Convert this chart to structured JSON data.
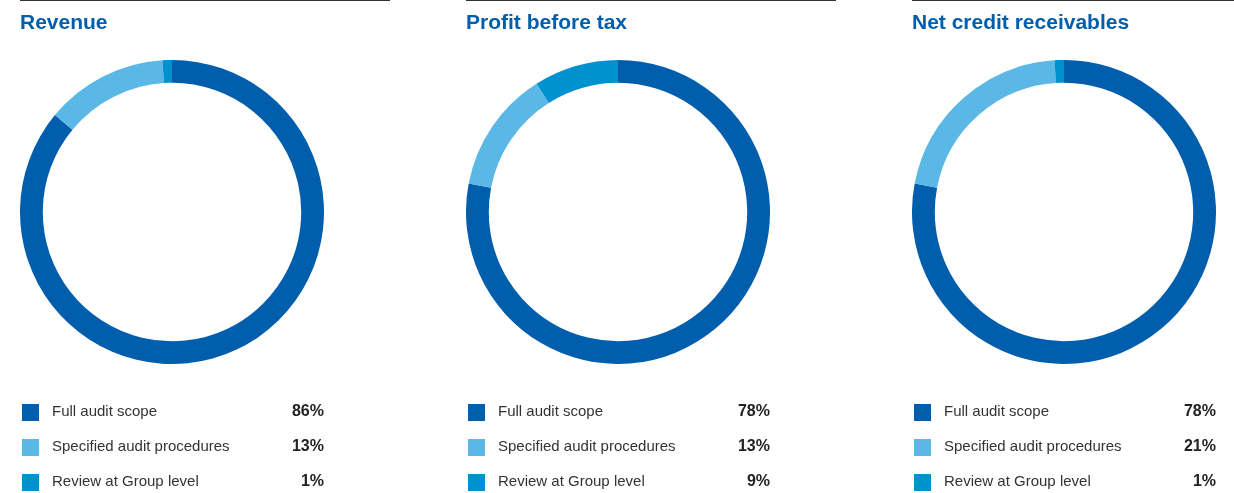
{
  "chart_data": [
    {
      "type": "donut",
      "title": "Revenue",
      "categories": [
        "Full audit scope",
        "Specified audit procedures",
        "Review at Group level"
      ],
      "values": [
        86,
        13,
        1
      ],
      "value_labels": [
        "86%",
        "13%",
        "1%"
      ],
      "colors": [
        "#005eac",
        "#5ab7e6",
        "#0092d0"
      ],
      "legend": "bottom"
    },
    {
      "type": "donut",
      "title": "Profit before tax",
      "categories": [
        "Full audit scope",
        "Specified audit procedures",
        "Review at Group level"
      ],
      "values": [
        78,
        13,
        9
      ],
      "value_labels": [
        "78%",
        "13%",
        "9%"
      ],
      "colors": [
        "#005eac",
        "#5ab7e6",
        "#0092d0"
      ],
      "legend": "bottom"
    },
    {
      "type": "donut",
      "title": "Net credit receivables",
      "categories": [
        "Full audit scope",
        "Specified audit procedures",
        "Review at Group level"
      ],
      "values": [
        78,
        21,
        1
      ],
      "value_labels": [
        "78%",
        "21%",
        "1%"
      ],
      "colors": [
        "#005eac",
        "#5ab7e6",
        "#0092d0"
      ],
      "legend": "bottom"
    }
  ]
}
